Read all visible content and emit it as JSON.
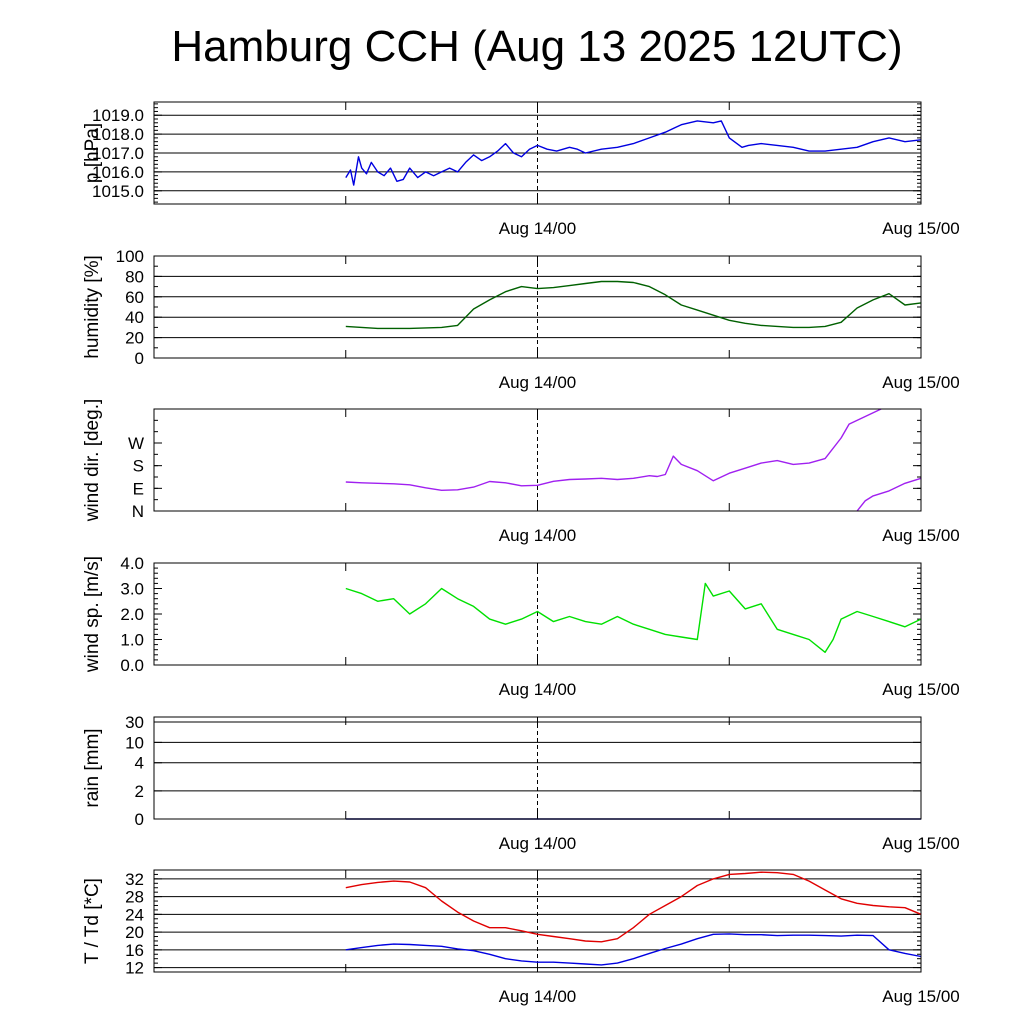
{
  "title": "Hamburg CCH (Aug 13 2025 12UTC)",
  "x_axis": {
    "range_hours": [
      -12,
      36
    ],
    "tick_labels": [
      {
        "hour": 12,
        "label": "Aug 14/00"
      },
      {
        "hour": 36,
        "label": "Aug 15/00"
      }
    ],
    "dashed_marker_hour": 12
  },
  "chart_data": [
    {
      "type": "line",
      "panel": "pressure",
      "ylabel": "p [hPa]",
      "ylim": [
        1014.3,
        1019.7
      ],
      "scale": "linear",
      "yticks": [
        1015.0,
        1016.0,
        1017.0,
        1018.0,
        1019.0
      ],
      "ytick_labels": [
        "1015.0",
        "1016.0",
        "1017.0",
        "1018.0",
        "1019.0"
      ],
      "grid": true,
      "series": [
        {
          "color": "#0000e0",
          "x": [
            0,
            0.3,
            0.5,
            0.8,
            1.0,
            1.3,
            1.6,
            2.0,
            2.4,
            2.8,
            3.2,
            3.6,
            4.0,
            4.5,
            5.0,
            5.5,
            6.0,
            6.5,
            7.0,
            7.5,
            8.0,
            8.5,
            9.0,
            9.5,
            10.0,
            10.5,
            11.0,
            11.5,
            12.0,
            12.6,
            13.2,
            14.0,
            14.5,
            15.0,
            16.0,
            17.0,
            18.0,
            19.0,
            20.0,
            21.0,
            22.0,
            23.0,
            23.5,
            24.0,
            24.8,
            25.2,
            26.0,
            27.0,
            28.0,
            29.0,
            30.0,
            31.0,
            32.0,
            33.0,
            34.0,
            35.0,
            36.0
          ],
          "values": [
            1015.7,
            1016.1,
            1015.3,
            1016.8,
            1016.2,
            1015.9,
            1016.5,
            1016.0,
            1015.8,
            1016.2,
            1015.5,
            1015.6,
            1016.2,
            1015.7,
            1016.0,
            1015.8,
            1016.0,
            1016.2,
            1016.0,
            1016.5,
            1016.9,
            1016.6,
            1016.8,
            1017.1,
            1017.5,
            1017.0,
            1016.8,
            1017.2,
            1017.4,
            1017.2,
            1017.1,
            1017.3,
            1017.2,
            1017.0,
            1017.2,
            1017.3,
            1017.5,
            1017.8,
            1018.1,
            1018.5,
            1018.7,
            1018.6,
            1018.7,
            1017.8,
            1017.3,
            1017.4,
            1017.5,
            1017.4,
            1017.3,
            1017.1,
            1017.1,
            1017.2,
            1017.3,
            1017.6,
            1017.8,
            1017.6,
            1017.7
          ]
        }
      ]
    },
    {
      "type": "line",
      "panel": "humidity",
      "ylabel": "humidity [%]",
      "ylim": [
        0,
        100
      ],
      "scale": "linear",
      "yticks": [
        0,
        20,
        40,
        60,
        80,
        100
      ],
      "ytick_labels": [
        "0",
        "20",
        "40",
        "60",
        "80",
        "100"
      ],
      "grid": true,
      "series": [
        {
          "color": "#006000",
          "x": [
            0,
            1,
            2,
            4,
            6,
            7,
            8,
            9,
            10,
            11,
            12,
            13,
            14,
            15,
            16,
            17,
            18,
            19,
            20,
            21,
            22,
            23,
            24,
            25,
            26,
            27,
            28,
            29,
            30,
            31,
            32,
            33,
            34,
            35,
            36
          ],
          "values": [
            31,
            30,
            29,
            29,
            30,
            32,
            48,
            57,
            65,
            70,
            68,
            69,
            71,
            73,
            75,
            75,
            74,
            70,
            62,
            52,
            47,
            42,
            37,
            34,
            32,
            31,
            30,
            30,
            31,
            35,
            49,
            57,
            63,
            52,
            54
          ]
        }
      ]
    },
    {
      "type": "line",
      "panel": "wind_direction",
      "ylabel": "wind dir. [deg.]",
      "ylim": [
        0,
        405
      ],
      "scale": "linear",
      "yticks": [
        0,
        90,
        180,
        270
      ],
      "ytick_labels": [
        "N",
        "E",
        "S",
        "W"
      ],
      "grid": false,
      "series": [
        {
          "color": "#a020f0",
          "x": [
            0,
            1,
            2,
            3,
            4,
            5,
            6,
            7,
            8,
            9,
            10,
            11,
            12,
            13,
            14,
            15,
            16,
            17,
            18,
            19,
            19.5,
            20,
            20.5,
            21,
            22,
            23,
            24,
            25,
            26,
            27,
            28,
            29,
            30,
            31,
            31.5,
            32,
            32.5,
            33,
            34,
            35,
            36
          ],
          "values": [
            115,
            112,
            110,
            108,
            104,
            92,
            82,
            84,
            95,
            117,
            112,
            100,
            102,
            118,
            125,
            127,
            130,
            125,
            130,
            140,
            137,
            145,
            218,
            185,
            160,
            120,
            150,
            170,
            190,
            200,
            185,
            190,
            208,
            290,
            345,
            0,
            40,
            60,
            80,
            110,
            130
          ]
        }
      ]
    },
    {
      "type": "line",
      "panel": "wind_speed",
      "ylabel": "wind sp. [m/s]",
      "ylim": [
        0,
        4.0
      ],
      "scale": "linear",
      "yticks": [
        0.0,
        1.0,
        2.0,
        3.0,
        4.0
      ],
      "ytick_labels": [
        "0.0",
        "1.0",
        "2.0",
        "3.0",
        "4.0"
      ],
      "grid": false,
      "series": [
        {
          "color": "#00e000",
          "x": [
            0,
            1,
            2,
            3,
            4,
            5,
            6,
            7,
            8,
            9,
            10,
            11,
            12,
            13,
            14,
            15,
            16,
            17,
            18,
            19,
            20,
            21,
            22,
            22.5,
            23,
            24,
            25,
            26,
            27,
            28,
            29,
            30,
            30.5,
            31,
            32,
            33,
            34,
            35,
            36
          ],
          "values": [
            3.0,
            2.8,
            2.5,
            2.6,
            2.0,
            2.4,
            3.0,
            2.6,
            2.3,
            1.8,
            1.6,
            1.8,
            2.1,
            1.7,
            1.9,
            1.7,
            1.6,
            1.9,
            1.6,
            1.4,
            1.2,
            1.1,
            1.0,
            3.2,
            2.7,
            2.9,
            2.2,
            2.4,
            1.4,
            1.2,
            1.0,
            0.5,
            1.0,
            1.8,
            2.1,
            1.9,
            1.7,
            1.5,
            1.8
          ]
        }
      ]
    },
    {
      "type": "line",
      "panel": "rain",
      "ylabel": "rain [mm]",
      "ylim": [
        0,
        30
      ],
      "scale": "nonlinear",
      "yticks": [
        0,
        2,
        4,
        10,
        30
      ],
      "ytick_labels": [
        "0",
        "2",
        "4",
        "10",
        "30"
      ],
      "grid": true,
      "series": [
        {
          "color": "#000080",
          "x": [
            0,
            36
          ],
          "values": [
            0,
            0
          ]
        }
      ]
    },
    {
      "type": "line",
      "panel": "temperature_dewpoint",
      "ylabel": "T / Td [*C]",
      "ylim": [
        11,
        34
      ],
      "scale": "linear",
      "yticks": [
        12,
        16,
        20,
        24,
        28,
        32
      ],
      "ytick_labels": [
        "12",
        "16",
        "20",
        "24",
        "28",
        "32"
      ],
      "grid": true,
      "series": [
        {
          "color": "#e00000",
          "x": [
            0,
            1,
            2,
            3,
            4,
            5,
            6,
            7,
            8,
            9,
            10,
            11,
            12,
            13,
            14,
            15,
            16,
            17,
            18,
            19,
            20,
            21,
            22,
            23,
            24,
            25,
            26,
            27,
            28,
            29,
            30,
            31,
            32,
            33,
            34,
            35,
            36
          ],
          "values": [
            30,
            30.7,
            31.2,
            31.5,
            31.3,
            30,
            27,
            24.5,
            22.5,
            21,
            21,
            20.3,
            19.5,
            19,
            18.5,
            18,
            17.8,
            18.5,
            21,
            24,
            26,
            28,
            30.5,
            32,
            33,
            33.2,
            33.5,
            33.4,
            33,
            31.5,
            29.5,
            27.5,
            26.5,
            26,
            25.7,
            25.5,
            24
          ]
        },
        {
          "color": "#0000e0",
          "x": [
            0,
            1,
            2,
            3,
            4,
            5,
            6,
            7,
            8,
            9,
            10,
            11,
            12,
            13,
            14,
            15,
            16,
            17,
            18,
            19,
            20,
            21,
            22,
            23,
            24,
            25,
            26,
            27,
            28,
            29,
            30,
            31,
            32,
            33,
            34,
            35,
            36
          ],
          "values": [
            16,
            16.5,
            17,
            17.3,
            17.2,
            17,
            16.8,
            16.2,
            15.8,
            15,
            14,
            13.5,
            13.2,
            13.2,
            13,
            12.8,
            12.6,
            13,
            14,
            15.2,
            16.3,
            17.3,
            18.5,
            19.5,
            19.6,
            19.4,
            19.4,
            19.2,
            19.3,
            19.3,
            19.2,
            19.1,
            19.3,
            19.2,
            16,
            15.2,
            14.5
          ]
        }
      ]
    }
  ]
}
